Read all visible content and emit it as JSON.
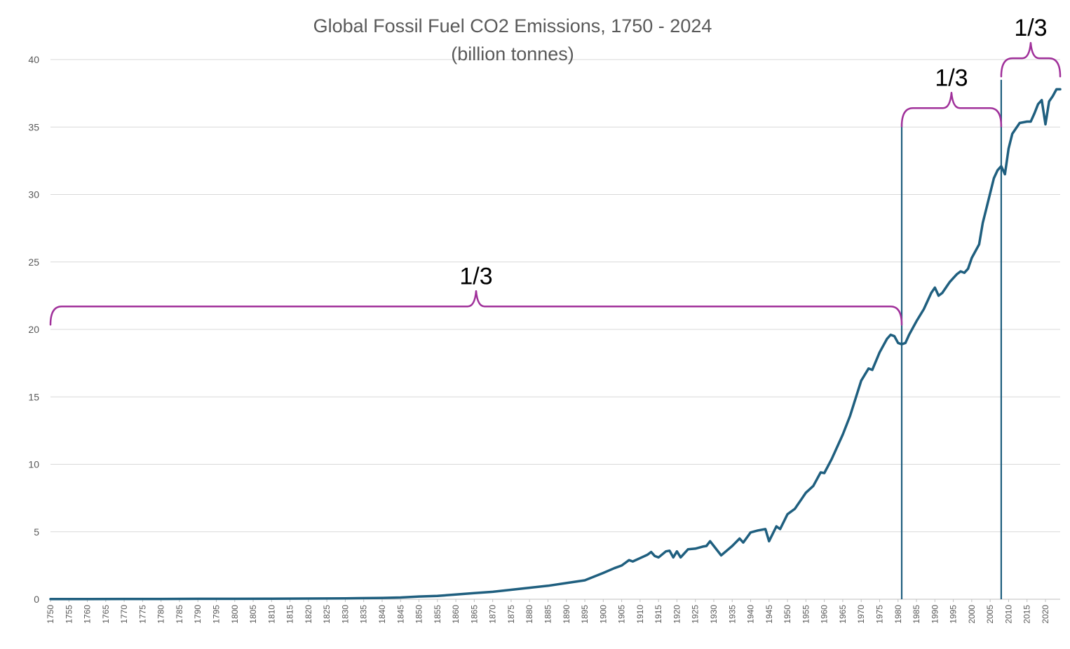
{
  "chart_data": {
    "type": "line",
    "title": "Global Fossil Fuel CO2 Emissions, 1750 - 2024",
    "subtitle": "(billion tonnes)",
    "xlabel": "",
    "ylabel": "",
    "xlim": [
      1750,
      2024
    ],
    "ylim": [
      0,
      40
    ],
    "yticks": [
      0,
      5,
      10,
      15,
      20,
      25,
      30,
      35,
      40
    ],
    "grid": true,
    "legend": "none",
    "line_color": "#1f5f7f",
    "bracket_color": "#a0309a",
    "series": [
      {
        "name": "CO2 emissions",
        "x": [
          1750,
          1760,
          1770,
          1780,
          1790,
          1800,
          1810,
          1820,
          1830,
          1840,
          1845,
          1850,
          1855,
          1860,
          1865,
          1870,
          1875,
          1880,
          1885,
          1890,
          1895,
          1900,
          1903,
          1905,
          1907,
          1908,
          1910,
          1912,
          1913,
          1914,
          1915,
          1917,
          1918,
          1919,
          1920,
          1921,
          1923,
          1925,
          1927,
          1928,
          1929,
          1930,
          1932,
          1935,
          1937,
          1938,
          1940,
          1942,
          1944,
          1945,
          1947,
          1948,
          1950,
          1952,
          1955,
          1957,
          1959,
          1960,
          1962,
          1965,
          1967,
          1970,
          1972,
          1973,
          1975,
          1977,
          1978,
          1979,
          1980,
          1981,
          1982,
          1983,
          1985,
          1987,
          1989,
          1990,
          1991,
          1992,
          1994,
          1996,
          1997,
          1998,
          1999,
          2000,
          2002,
          2003,
          2004,
          2006,
          2007,
          2008,
          2009,
          2010,
          2011,
          2013,
          2015,
          2016,
          2017,
          2018,
          2019,
          2020,
          2021,
          2022,
          2023,
          2024
        ],
        "y": [
          0.01,
          0.01,
          0.02,
          0.02,
          0.03,
          0.03,
          0.04,
          0.05,
          0.07,
          0.1,
          0.13,
          0.2,
          0.25,
          0.35,
          0.45,
          0.55,
          0.7,
          0.85,
          1.0,
          1.2,
          1.4,
          1.95,
          2.3,
          2.5,
          2.9,
          2.8,
          3.05,
          3.3,
          3.5,
          3.2,
          3.1,
          3.55,
          3.6,
          3.1,
          3.55,
          3.1,
          3.7,
          3.75,
          3.9,
          3.95,
          4.3,
          3.95,
          3.25,
          3.95,
          4.5,
          4.2,
          4.95,
          5.1,
          5.2,
          4.3,
          5.4,
          5.2,
          6.3,
          6.7,
          7.9,
          8.4,
          9.4,
          9.35,
          10.4,
          12.2,
          13.6,
          16.2,
          17.1,
          17.0,
          18.3,
          19.3,
          19.6,
          19.5,
          19.0,
          18.9,
          19.0,
          19.6,
          20.6,
          21.5,
          22.7,
          23.1,
          22.5,
          22.7,
          23.5,
          24.1,
          24.3,
          24.2,
          24.5,
          25.3,
          26.3,
          27.9,
          29.0,
          31.2,
          31.8,
          32.1,
          31.5,
          33.4,
          34.5,
          35.3,
          35.4,
          35.4,
          36.0,
          36.7,
          37.0,
          35.2,
          36.9,
          37.3,
          37.8,
          37.8
        ]
      }
    ],
    "divider_years": [
      1981,
      2008
    ],
    "annotations": [
      {
        "label": "1/3",
        "from": 1750,
        "to": 1981
      },
      {
        "label": "1/3",
        "from": 1981,
        "to": 2008
      },
      {
        "label": "1/3",
        "from": 2008,
        "to": 2024
      }
    ]
  }
}
